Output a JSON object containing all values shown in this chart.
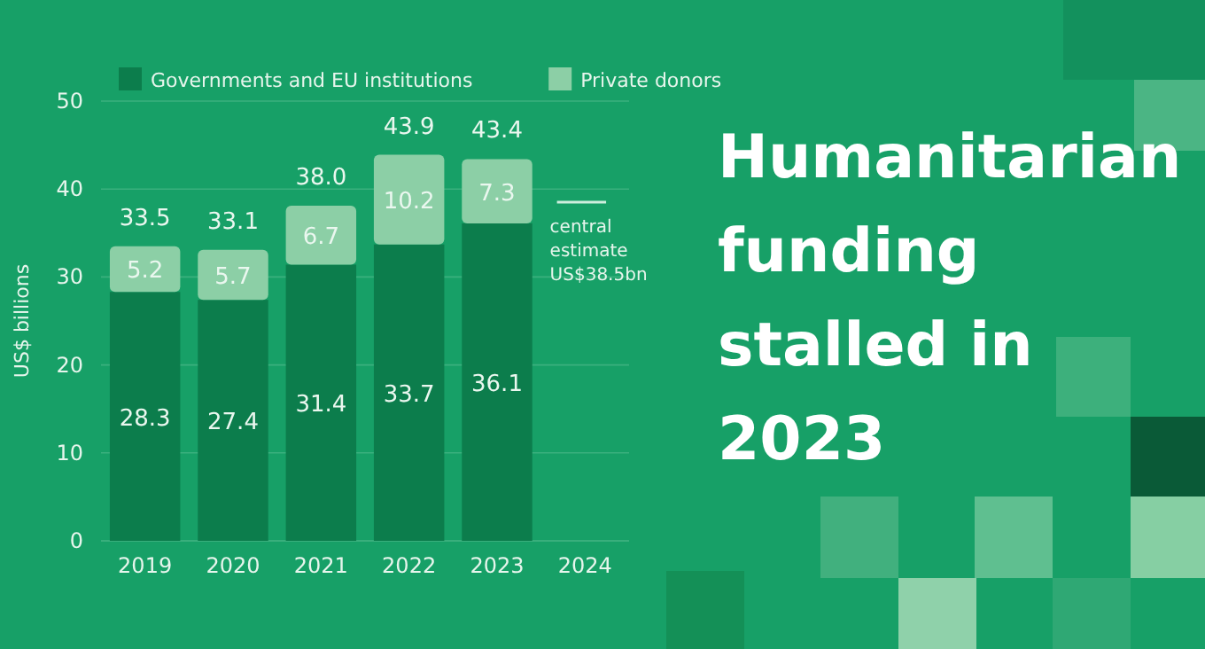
{
  "chart_data": {
    "type": "bar",
    "title": "Humanitarian funding stalled in 2023",
    "ylabel": "US$ billions",
    "categories": [
      "2019",
      "2020",
      "2021",
      "2022",
      "2023",
      "2024"
    ],
    "series": [
      {
        "name": "Governments and EU institutions",
        "color": "#0c7d4c",
        "values": [
          28.3,
          27.4,
          31.4,
          33.7,
          36.1,
          null
        ]
      },
      {
        "name": "Private donors",
        "color": "#8ccfa6",
        "values": [
          5.2,
          5.7,
          6.7,
          10.2,
          7.3,
          null
        ]
      }
    ],
    "stacked": true,
    "data_labels": true,
    "totals": [
      "33.5",
      "33.1",
      "38.0",
      "43.9",
      "43.4",
      null
    ],
    "ylim": [
      0,
      50
    ],
    "yticks": [
      0,
      10,
      20,
      30,
      40,
      50
    ],
    "grid": "y",
    "legend": "top",
    "ref_lines": [
      {
        "axis": "y",
        "value": 38.5,
        "label": "central estimate US$38.5bn",
        "color": "#cdeedd"
      }
    ]
  }
}
